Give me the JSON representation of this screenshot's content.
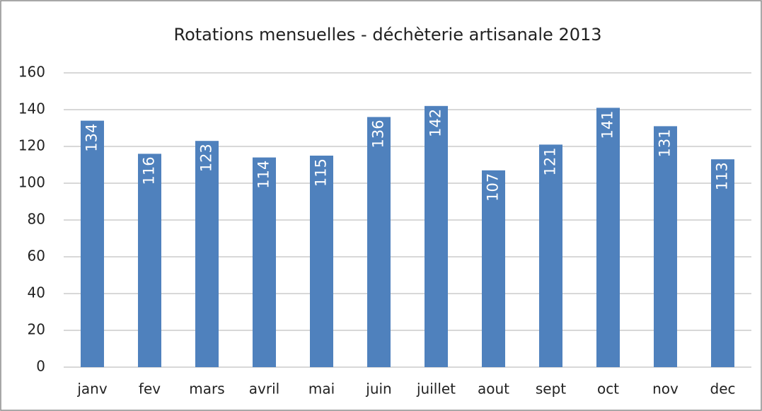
{
  "chart_data": {
    "type": "bar",
    "title": "Rotations mensuelles - déchèterie artisanale 2013",
    "categories": [
      "janv",
      "fev",
      "mars",
      "avril",
      "mai",
      "juin",
      "juillet",
      "aout",
      "sept",
      "oct",
      "nov",
      "dec"
    ],
    "values": [
      134,
      116,
      123,
      114,
      115,
      136,
      142,
      107,
      121,
      141,
      131,
      113
    ],
    "color": "#4f81bd",
    "ylim": [
      0,
      160
    ],
    "yticks": [
      0,
      20,
      40,
      60,
      80,
      100,
      120,
      140,
      160
    ],
    "grid": true
  }
}
